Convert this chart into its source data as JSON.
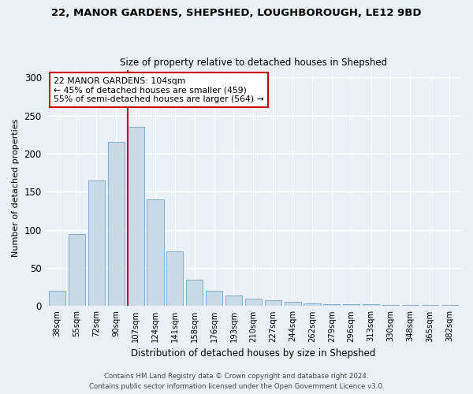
{
  "title_line1": "22, MANOR GARDENS, SHEPSHED, LOUGHBOROUGH, LE12 9BD",
  "title_line2": "Size of property relative to detached houses in Shepshed",
  "xlabel": "Distribution of detached houses by size in Shepshed",
  "ylabel": "Number of detached properties",
  "bar_labels": [
    "38sqm",
    "55sqm",
    "72sqm",
    "90sqm",
    "107sqm",
    "124sqm",
    "141sqm",
    "158sqm",
    "176sqm",
    "193sqm",
    "210sqm",
    "227sqm",
    "244sqm",
    "262sqm",
    "279sqm",
    "296sqm",
    "313sqm",
    "330sqm",
    "348sqm",
    "365sqm",
    "382sqm"
  ],
  "bar_values": [
    20,
    95,
    165,
    215,
    235,
    140,
    72,
    35,
    20,
    14,
    10,
    8,
    6,
    4,
    3,
    2,
    2,
    1,
    1,
    1,
    1
  ],
  "bar_color": "#c9d9e8",
  "bar_edge_color": "#7aadd0",
  "annotation_text": "22 MANOR GARDENS: 104sqm\n← 45% of detached houses are smaller (459)\n55% of semi-detached houses are larger (564) →",
  "annotation_box_color": "#ffffff",
  "annotation_box_edge_color": "#cc0000",
  "vline_color": "#cc0000",
  "vline_bin_index": 4,
  "ylim": [
    0,
    310
  ],
  "yticks": [
    0,
    50,
    100,
    150,
    200,
    250,
    300
  ],
  "background_color": "#eaf0f6",
  "grid_color": "#ffffff",
  "footer_line1": "Contains HM Land Registry data © Crown copyright and database right 2024.",
  "footer_line2": "Contains public sector information licensed under the Open Government Licence v3.0."
}
